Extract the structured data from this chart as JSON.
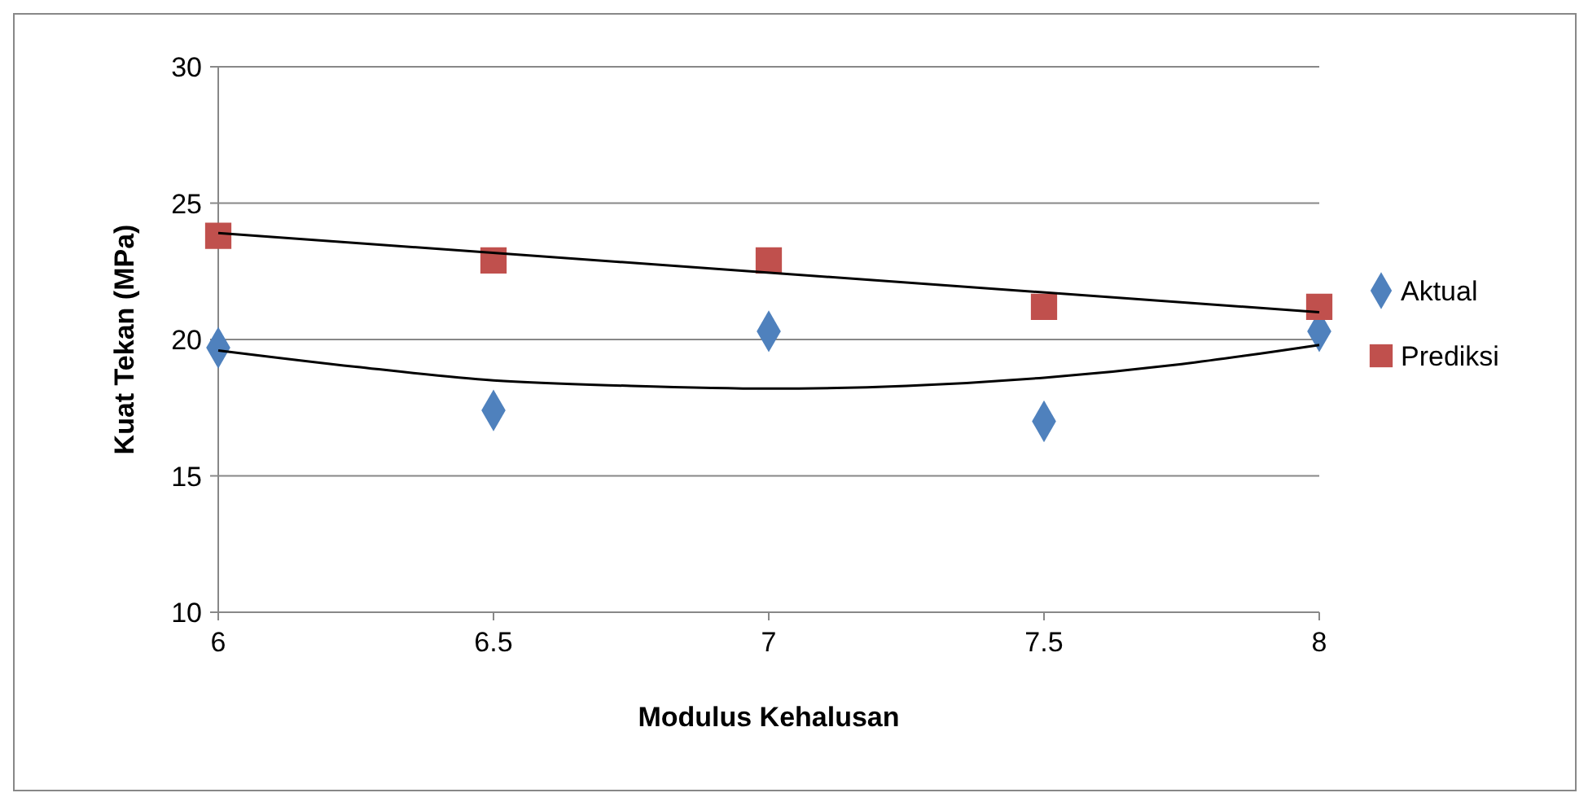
{
  "chart_data": {
    "type": "scatter",
    "xlabel": "Modulus Kehalusan",
    "ylabel": "Kuat Tekan (MPa)",
    "x": [
      6,
      6.5,
      7,
      7.5,
      8
    ],
    "xlim": [
      6,
      8
    ],
    "xticks": [
      6,
      6.5,
      7,
      7.5,
      8
    ],
    "ylim": [
      10,
      30
    ],
    "yticks": [
      10,
      15,
      20,
      25,
      30
    ],
    "grid": "y",
    "legend": "right",
    "series": [
      {
        "name": "Aktual",
        "color": "#4f81bd",
        "marker": "diamond",
        "values": [
          19.7,
          17.4,
          20.3,
          17.0,
          20.3
        ]
      },
      {
        "name": "Prediksi",
        "color": "#c0504d",
        "marker": "square",
        "values": [
          23.8,
          22.9,
          22.9,
          21.2,
          21.2
        ]
      },
      {
        "type": "line",
        "color": "#000000",
        "marker": "none",
        "x": [
          6,
          8
        ],
        "values": [
          23.9,
          21.0
        ]
      },
      {
        "type": "line",
        "color": "#000000",
        "marker": "none",
        "x": [
          6,
          6.25,
          6.5,
          6.75,
          7,
          7.25,
          7.5,
          7.75,
          8
        ],
        "values": [
          19.6,
          19.0,
          18.5,
          18.3,
          18.2,
          18.3,
          18.6,
          19.1,
          19.8
        ]
      }
    ]
  }
}
